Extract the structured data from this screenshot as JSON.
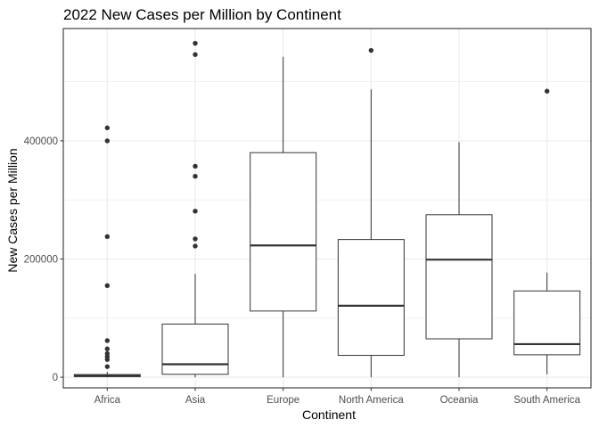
{
  "chart_data": {
    "type": "boxplot",
    "title": "2022 New Cases per Million by Continent",
    "xlabel": "Continent",
    "ylabel": "New Cases per Million",
    "ylim": [
      -18000,
      590000
    ],
    "yticks": [
      0,
      200000,
      400000
    ],
    "ytick_labels": [
      "0",
      "200000",
      "400000"
    ],
    "grid": true,
    "colors": {
      "box_fill": "#ffffff",
      "line": "#333333",
      "grid": "#ebebeb",
      "panel_border": "#333333"
    },
    "categories": [
      "Africa",
      "Asia",
      "Europe",
      "North America",
      "Oceania",
      "South America"
    ],
    "boxes": [
      {
        "category": "Africa",
        "whisker_low": 0,
        "q1": 1000,
        "median": 2500,
        "q3": 4500,
        "whisker_high": 9000,
        "outliers": [
          18000,
          30000,
          35000,
          40000,
          48000,
          62000,
          155000,
          238000,
          400000,
          422000
        ]
      },
      {
        "category": "Asia",
        "whisker_low": 0,
        "q1": 5000,
        "median": 22000,
        "q3": 90000,
        "whisker_high": 175000,
        "outliers": [
          222000,
          234000,
          281000,
          340000,
          357000,
          546000,
          565000
        ]
      },
      {
        "category": "Europe",
        "whisker_low": 0,
        "q1": 112000,
        "median": 223000,
        "q3": 380000,
        "whisker_high": 542000,
        "outliers": []
      },
      {
        "category": "North America",
        "whisker_low": 0,
        "q1": 37000,
        "median": 121000,
        "q3": 233000,
        "whisker_high": 487000,
        "outliers": [
          553000
        ]
      },
      {
        "category": "Oceania",
        "whisker_low": 0,
        "q1": 65000,
        "median": 199000,
        "q3": 275000,
        "whisker_high": 398000,
        "outliers": []
      },
      {
        "category": "South America",
        "whisker_low": 5000,
        "q1": 38000,
        "median": 56000,
        "q3": 146000,
        "whisker_high": 177000,
        "outliers": [
          484000
        ]
      }
    ]
  }
}
